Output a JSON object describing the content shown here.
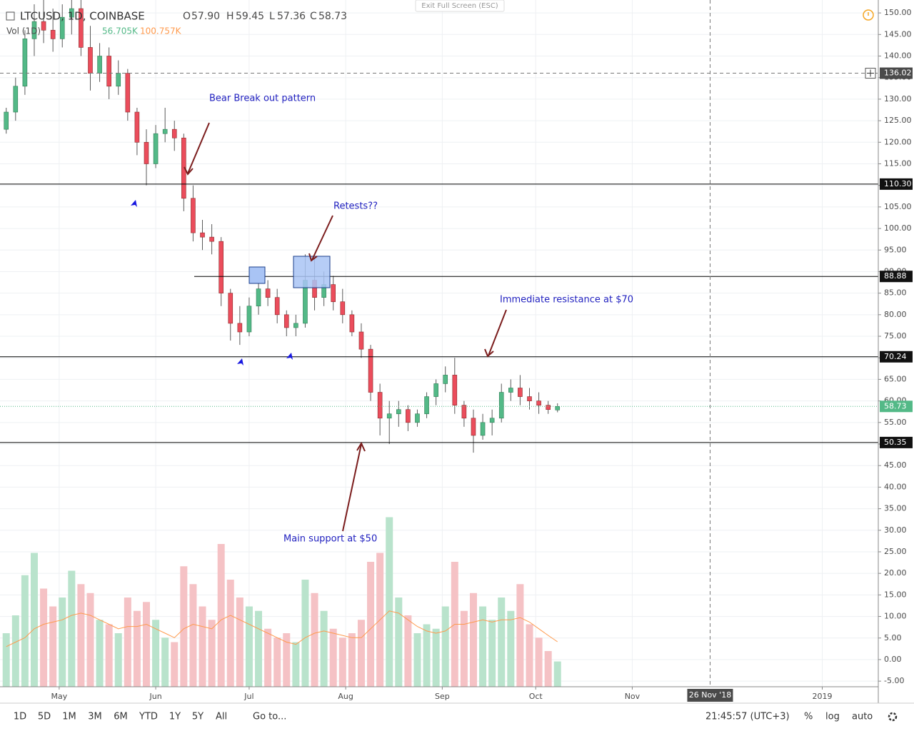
{
  "chart_data": {
    "type": "candlestick",
    "symbol": "LTCUSD, 1D, COINBASE",
    "legend": {
      "open_label": "O",
      "open": "57.90",
      "high_label": "H",
      "high": "59.45",
      "low_label": "L",
      "low": "57.36",
      "close_label": "C",
      "close": "58.73",
      "volume_label": "Vol (1D)",
      "volume": "56.705K",
      "volume_ma": "100.757K"
    },
    "exit_button": "Exit Full Screen (ESC)",
    "x": [
      "2018-04-14",
      "2018-04-17",
      "2018-04-20",
      "2018-04-23",
      "2018-04-26",
      "2018-04-29",
      "2018-05-02",
      "2018-05-05",
      "2018-05-08",
      "2018-05-11",
      "2018-05-14",
      "2018-05-17",
      "2018-05-20",
      "2018-05-23",
      "2018-05-26",
      "2018-05-29",
      "2018-06-01",
      "2018-06-04",
      "2018-06-07",
      "2018-06-10",
      "2018-06-13",
      "2018-06-16",
      "2018-06-19",
      "2018-06-22",
      "2018-06-25",
      "2018-06-28",
      "2018-07-01",
      "2018-07-04",
      "2018-07-07",
      "2018-07-10",
      "2018-07-13",
      "2018-07-16",
      "2018-07-19",
      "2018-07-22",
      "2018-07-25",
      "2018-07-28",
      "2018-07-31",
      "2018-08-03",
      "2018-08-06",
      "2018-08-09",
      "2018-08-12",
      "2018-08-15",
      "2018-08-18",
      "2018-08-21",
      "2018-08-24",
      "2018-08-27",
      "2018-08-30",
      "2018-09-02",
      "2018-09-05",
      "2018-09-08",
      "2018-09-11",
      "2018-09-14",
      "2018-09-17",
      "2018-09-20",
      "2018-09-23",
      "2018-09-26",
      "2018-09-29",
      "2018-10-02",
      "2018-10-05",
      "2018-10-08"
    ],
    "open": [
      123,
      127,
      133,
      144,
      148,
      146,
      144,
      149,
      151,
      142,
      136,
      140,
      133,
      136,
      127,
      120,
      115,
      122,
      123,
      121,
      107,
      99,
      98,
      97,
      85,
      78,
      76,
      82,
      86,
      84,
      80,
      77,
      78,
      88,
      84,
      87,
      83,
      80,
      76,
      72,
      62,
      56,
      57,
      58,
      55,
      57,
      61,
      64,
      66,
      59,
      56,
      52,
      55,
      56,
      62,
      63,
      61,
      60,
      59,
      57.9
    ],
    "high": [
      128,
      135,
      146,
      152,
      153,
      151,
      152,
      154,
      153,
      147,
      143,
      142,
      139,
      137,
      128,
      123,
      124,
      128,
      125,
      122,
      110,
      102,
      101,
      98,
      86,
      82,
      84,
      89,
      88,
      86,
      81,
      80,
      94,
      93,
      90,
      89,
      86,
      81,
      78,
      73,
      64,
      60,
      60,
      59,
      58,
      62,
      65,
      68,
      70,
      60,
      58,
      57,
      58,
      64,
      65,
      66,
      63,
      62,
      60,
      59.45
    ],
    "low": [
      122,
      125,
      131,
      140,
      143,
      141,
      142,
      145,
      140,
      132,
      134,
      130,
      131,
      125,
      117,
      110,
      114,
      120,
      118,
      104,
      97,
      95,
      94,
      82,
      74,
      73,
      75,
      80,
      82,
      78,
      75,
      75,
      77,
      81,
      82,
      81,
      78,
      75,
      70,
      60,
      52,
      50,
      54,
      53,
      54,
      56,
      59,
      62,
      57,
      54,
      48,
      51,
      52,
      55,
      60,
      59,
      58,
      57,
      57,
      57.36
    ],
    "close": [
      127,
      133,
      144,
      148,
      146,
      144,
      149,
      151,
      142,
      136,
      140,
      133,
      136,
      127,
      120,
      115,
      122,
      123,
      121,
      107,
      99,
      98,
      97,
      85,
      78,
      76,
      82,
      86,
      84,
      80,
      77,
      78,
      88,
      84,
      87,
      83,
      80,
      76,
      72,
      62,
      56,
      57,
      58,
      55,
      57,
      61,
      64,
      66,
      59,
      56,
      52,
      55,
      56,
      62,
      63,
      61,
      60,
      59,
      58,
      58.73
    ],
    "volume": [
      120,
      160,
      250,
      300,
      220,
      180,
      200,
      260,
      230,
      210,
      150,
      140,
      120,
      200,
      170,
      190,
      150,
      110,
      100,
      270,
      230,
      180,
      150,
      320,
      240,
      200,
      180,
      170,
      130,
      110,
      120,
      100,
      240,
      210,
      170,
      130,
      110,
      120,
      150,
      280,
      300,
      380,
      200,
      160,
      120,
      140,
      130,
      180,
      280,
      170,
      210,
      180,
      150,
      200,
      170,
      230,
      140,
      110,
      80,
      56.705
    ],
    "volume_ma": [
      90,
      100,
      110,
      130,
      140,
      145,
      150,
      160,
      165,
      160,
      150,
      140,
      130,
      135,
      135,
      140,
      130,
      120,
      110,
      130,
      140,
      135,
      130,
      150,
      160,
      150,
      140,
      130,
      120,
      110,
      100,
      95,
      110,
      120,
      125,
      120,
      115,
      110,
      110,
      130,
      150,
      170,
      165,
      150,
      135,
      125,
      120,
      125,
      140,
      140,
      145,
      150,
      145,
      150,
      150,
      155,
      145,
      130,
      115,
      100.757
    ],
    "up_color": "#53b987",
    "down_color": "#eb4d5c",
    "volume_up_color": "#b9e3cc",
    "volume_down_color": "#f5c2c5",
    "volume_ma_color": "#ff9a4d",
    "volume_lim": [
      0,
      400
    ],
    "xlim": [
      "2018-04-12",
      "2019-01-19"
    ],
    "xticks": [
      {
        "value": "2018-05-01",
        "label": "May"
      },
      {
        "value": "2018-06-01",
        "label": "Jun"
      },
      {
        "value": "2018-07-01",
        "label": "Jul"
      },
      {
        "value": "2018-08-01",
        "label": "Aug"
      },
      {
        "value": "2018-09-01",
        "label": "Sep"
      },
      {
        "value": "2018-10-01",
        "label": "Oct"
      },
      {
        "value": "2018-11-01",
        "label": "Nov"
      },
      {
        "value": "2019-01-01",
        "label": "2019"
      }
    ],
    "ylim": [
      -6.3,
      153
    ],
    "yticks": [
      {
        "value": 150,
        "label": "150.00"
      },
      {
        "value": 145,
        "label": "145.00"
      },
      {
        "value": 140,
        "label": "140.00"
      },
      {
        "value": 135,
        "label": "135.00"
      },
      {
        "value": 130,
        "label": "130.00"
      },
      {
        "value": 125,
        "label": "125.00"
      },
      {
        "value": 120,
        "label": "120.00"
      },
      {
        "value": 115,
        "label": "115.00"
      },
      {
        "value": 110,
        "label": "110.00"
      },
      {
        "value": 105,
        "label": "105.00"
      },
      {
        "value": 100,
        "label": "100.00"
      },
      {
        "value": 95,
        "label": "95.00"
      },
      {
        "value": 90,
        "label": "90.00"
      },
      {
        "value": 85,
        "label": "85.00"
      },
      {
        "value": 80,
        "label": "80.00"
      },
      {
        "value": 75,
        "label": "75.00"
      },
      {
        "value": 70,
        "label": "70.00"
      },
      {
        "value": 65,
        "label": "65.00"
      },
      {
        "value": 60,
        "label": "60.00"
      },
      {
        "value": 55,
        "label": "55.00"
      },
      {
        "value": 50,
        "label": "50.00"
      },
      {
        "value": 45,
        "label": "45.00"
      },
      {
        "value": 40,
        "label": "40.00"
      },
      {
        "value": 35,
        "label": "35.00"
      },
      {
        "value": 30,
        "label": "30.00"
      },
      {
        "value": 25,
        "label": "25.00"
      },
      {
        "value": 20,
        "label": "20.00"
      },
      {
        "value": 15,
        "label": "15.00"
      },
      {
        "value": 10,
        "label": "10.00"
      },
      {
        "value": 5,
        "label": "5.00"
      },
      {
        "value": 0,
        "label": "0.00"
      },
      {
        "value": -5,
        "label": "-5.00"
      }
    ],
    "grid": true,
    "levels": [
      {
        "value": 110.3,
        "label": "110.30"
      },
      {
        "value": 88.88,
        "label": "88.88"
      },
      {
        "value": 70.24,
        "label": "70.24"
      },
      {
        "value": 50.35,
        "label": "50.35"
      }
    ],
    "last_price": {
      "value": 58.73,
      "label": "58.73"
    },
    "crosshair": {
      "date": "2018-11-26",
      "date_label": "26 Nov '18",
      "price": 136.02,
      "price_label": "136.02"
    },
    "annotations": [
      "Bear Break out pattern",
      "Retests??",
      "Immediate resistance at $70",
      "Main support at $50"
    ],
    "toolbar": {
      "ranges": [
        "1D",
        "5D",
        "1M",
        "3M",
        "6M",
        "YTD",
        "1Y",
        "5Y",
        "All"
      ],
      "goto": "Go to...",
      "clock": "21:45:57 (UTC+3)",
      "percent": "%",
      "log": "log",
      "auto": "auto"
    }
  }
}
